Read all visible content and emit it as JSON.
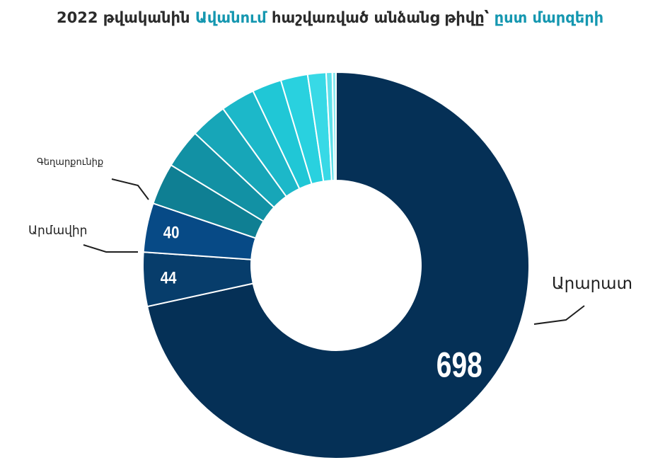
{
  "title": {
    "year": "2022",
    "part1": "թվականին",
    "highlight1": "Ավանում",
    "part2": "հաշվառված անձանց թիվը՝",
    "highlight2": "ըստ մարզերի"
  },
  "chart_data": {
    "type": "donut",
    "slices": [
      {
        "label": "Արարատ",
        "value": 698,
        "value_label": "698",
        "color": "#053056"
      },
      {
        "label": "Արմավիր",
        "value": 44,
        "value_label": "44",
        "color": "#073d6b"
      },
      {
        "label": "Գեղարքունիք",
        "value": 40,
        "value_label": "40",
        "color": "#074a86"
      },
      {
        "label": "",
        "value": 34,
        "value_label": "",
        "color": "#0f7f93"
      },
      {
        "label": "",
        "value": 32,
        "value_label": "",
        "color": "#1291a4"
      },
      {
        "label": "",
        "value": 30,
        "value_label": "",
        "color": "#17a6b8"
      },
      {
        "label": "",
        "value": 28,
        "value_label": "",
        "color": "#1cb8c9"
      },
      {
        "label": "",
        "value": 24,
        "value_label": "",
        "color": "#20c7d6"
      },
      {
        "label": "",
        "value": 22,
        "value_label": "",
        "color": "#29d1df"
      },
      {
        "label": "",
        "value": 15,
        "value_label": "",
        "color": "#38d9e6"
      },
      {
        "label": "",
        "value": 5,
        "value_label": "",
        "color": "#5fe0ea"
      },
      {
        "label": "",
        "value": 3,
        "value_label": "",
        "color": "#8ae9f0"
      }
    ]
  }
}
